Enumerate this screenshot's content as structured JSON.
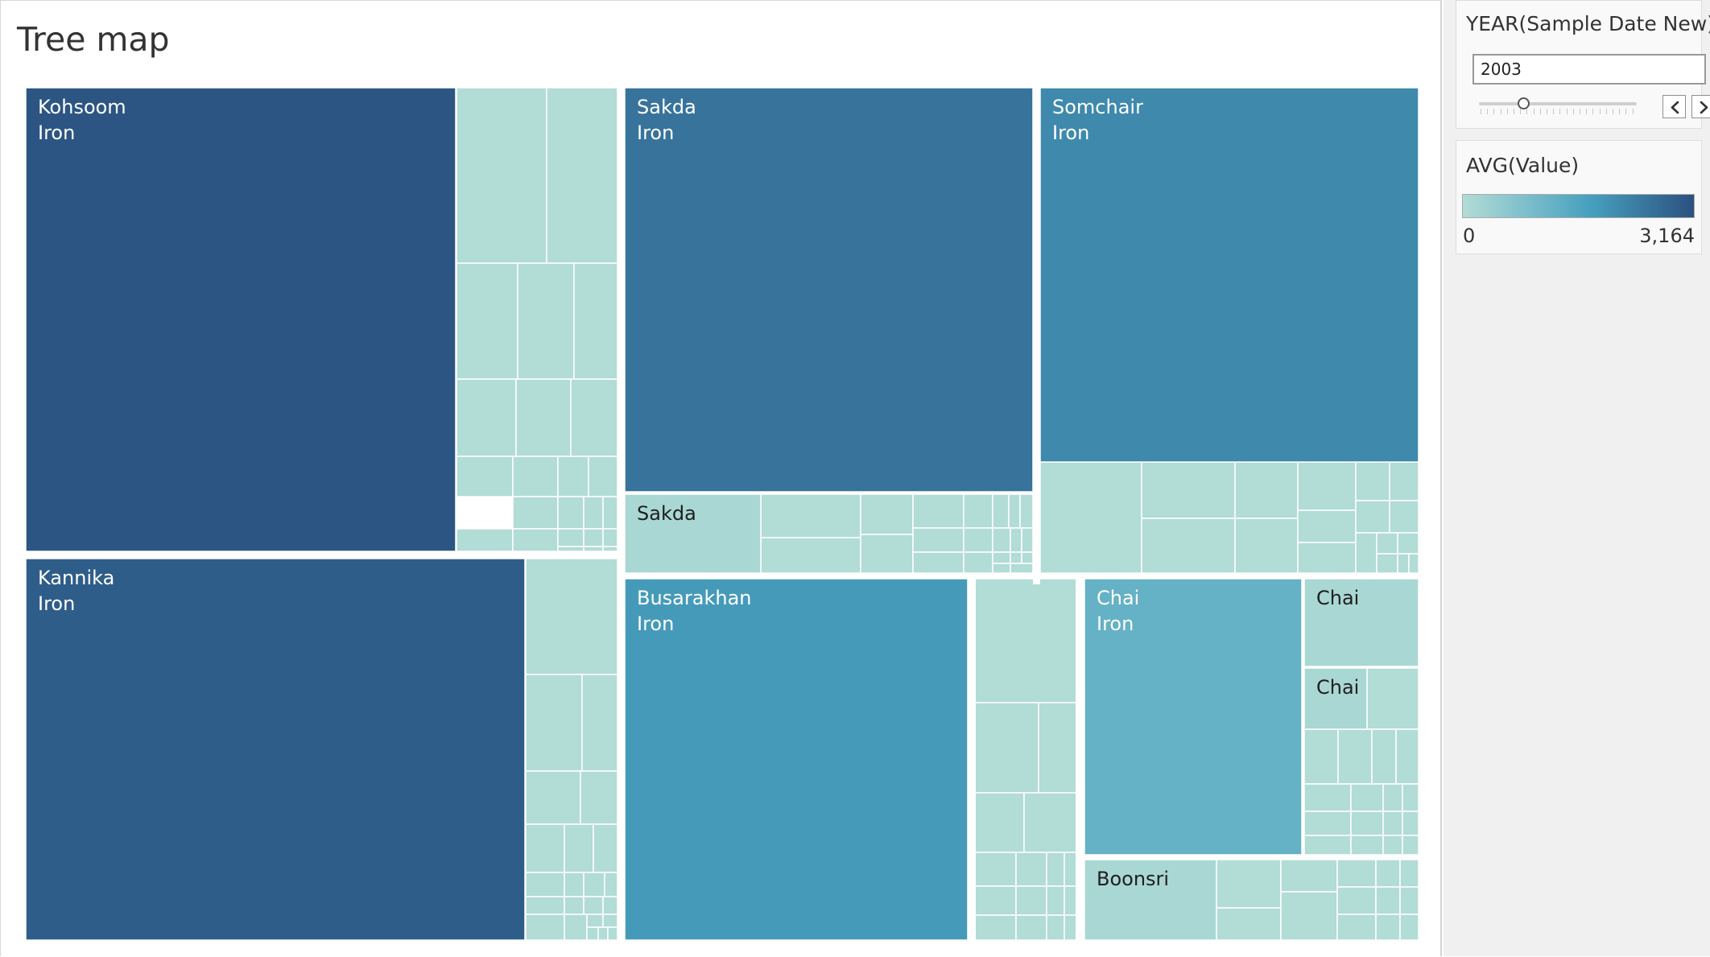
{
  "chart_data": {
    "type": "treemap",
    "title": "Tree map",
    "color_legend": {
      "title": "AVG(Value)",
      "min_label": "0",
      "max_label": "3,164",
      "min": 0,
      "max": 3164,
      "colors": [
        "#b2dcd6",
        "#47a0bf",
        "#2b5180"
      ]
    },
    "groups": [
      {
        "name": "Kohsoom",
        "labeled_cells": [
          {
            "lines": [
              "Kohsoom",
              "Iron"
            ],
            "avg_value": 3090
          }
        ]
      },
      {
        "name": "Kannika",
        "labeled_cells": [
          {
            "lines": [
              "Kannika",
              "Iron"
            ],
            "avg_value": 2950
          }
        ]
      },
      {
        "name": "Sakda",
        "labeled_cells": [
          {
            "lines": [
              "Sakda",
              "Iron"
            ],
            "avg_value": 2550
          },
          {
            "lines": [
              "Sakda"
            ],
            "avg_value": 150
          }
        ]
      },
      {
        "name": "Somchair",
        "labeled_cells": [
          {
            "lines": [
              "Somchair",
              "Iron"
            ],
            "avg_value": 2150
          }
        ]
      },
      {
        "name": "Busarakhan",
        "labeled_cells": [
          {
            "lines": [
              "Busarakhan",
              "Iron"
            ],
            "avg_value": 1850
          }
        ]
      },
      {
        "name": "Chai",
        "labeled_cells": [
          {
            "lines": [
              "Chai",
              "Iron"
            ],
            "avg_value": 1250
          },
          {
            "lines": [
              "Chai"
            ],
            "avg_value": 150
          },
          {
            "lines": [
              "Chai"
            ],
            "avg_value": 150
          }
        ]
      },
      {
        "name": "Boonsri",
        "labeled_cells": [
          {
            "lines": [
              "Boonsri"
            ],
            "avg_value": 150
          }
        ]
      }
    ]
  },
  "filter": {
    "title": "YEAR(Sample Date New)",
    "value": "2003",
    "slider_position": 0.28
  },
  "colors": {
    "low": "#b2dcd6",
    "mid": "#47a0bf",
    "high": "#2b5180",
    "separator": "#ffffff"
  },
  "icons": {
    "prev": "chevron-left-icon",
    "next": "chevron-right-icon"
  }
}
